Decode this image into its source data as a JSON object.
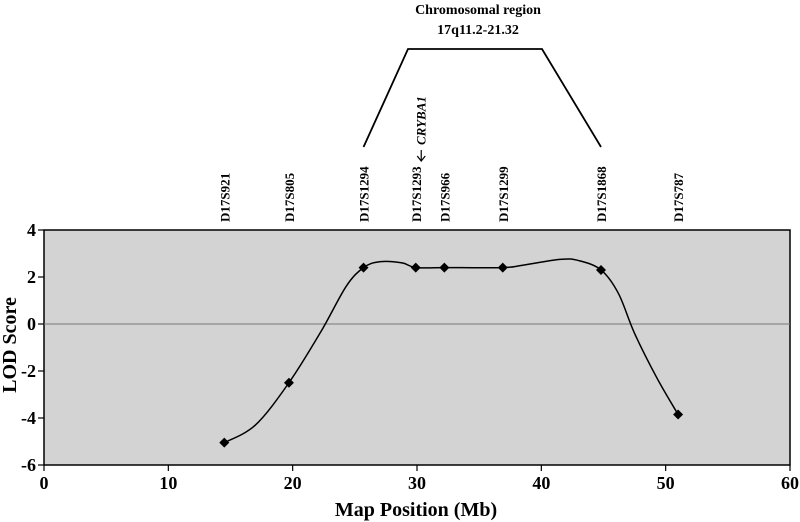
{
  "chart_data": {
    "type": "line",
    "title": "",
    "xlabel": "Map Position (Mb)",
    "ylabel": "LOD Score",
    "xlim": [
      0,
      60
    ],
    "ylim": [
      -6,
      4
    ],
    "xticks": [
      0,
      10,
      20,
      30,
      40,
      50,
      60
    ],
    "yticks": [
      4,
      2,
      0,
      -2,
      -4,
      -6
    ],
    "xtick_labels": [
      "0",
      "10",
      "20",
      "30",
      "40",
      "50",
      "60"
    ],
    "ytick_labels": [
      "4",
      "2",
      "0",
      "-2",
      "-4",
      "-6"
    ],
    "grid": false,
    "plot_background": "#d3d3d3",
    "series": [
      {
        "points": [
          {
            "x": 14.5,
            "y": -5.05
          },
          {
            "x": 19.7,
            "y": -2.5
          },
          {
            "x": 25.7,
            "y": 2.4
          },
          {
            "x": 29.9,
            "y": 2.4
          },
          {
            "x": 32.2,
            "y": 2.4
          },
          {
            "x": 36.9,
            "y": 2.4
          },
          {
            "x": 44.8,
            "y": 2.3
          },
          {
            "x": 51.0,
            "y": -3.85
          }
        ],
        "curve": [
          [
            14.5,
            -5.05
          ],
          [
            17.0,
            -4.3
          ],
          [
            19.7,
            -2.5
          ],
          [
            22.3,
            -0.3
          ],
          [
            24.3,
            1.6
          ],
          [
            25.7,
            2.4
          ],
          [
            27.0,
            2.65
          ],
          [
            28.8,
            2.6
          ],
          [
            29.9,
            2.4
          ],
          [
            32.2,
            2.4
          ],
          [
            36.9,
            2.4
          ],
          [
            38.5,
            2.5
          ],
          [
            41.5,
            2.75
          ],
          [
            43.0,
            2.7
          ],
          [
            44.8,
            2.3
          ],
          [
            46.2,
            1.3
          ],
          [
            47.5,
            -0.4
          ],
          [
            49.3,
            -2.3
          ],
          [
            51.0,
            -3.85
          ]
        ],
        "marker": "diamond",
        "color": "#000000"
      }
    ],
    "zero_line": {
      "y": 0,
      "color": "#777777"
    },
    "markers": [
      {
        "label": "D17S921",
        "x": 14.5
      },
      {
        "label": "D17S805",
        "x": 19.7
      },
      {
        "label": "D17S1294",
        "x": 25.7
      },
      {
        "label": "D17S1293",
        "x": 29.9
      },
      {
        "label": "D17S966",
        "x": 32.2
      },
      {
        "label": "D17S1299",
        "x": 36.9
      },
      {
        "label": "D17S1868",
        "x": 44.8
      },
      {
        "label": "D17S787",
        "x": 51.0
      }
    ],
    "gene_annotation": {
      "label": "CRYBA1",
      "x": 30.3
    },
    "region": {
      "title_line1": "Chromosomal region",
      "title_line2": "17q11.2-21.32",
      "x_start": 25.7,
      "x_end": 44.8
    }
  }
}
